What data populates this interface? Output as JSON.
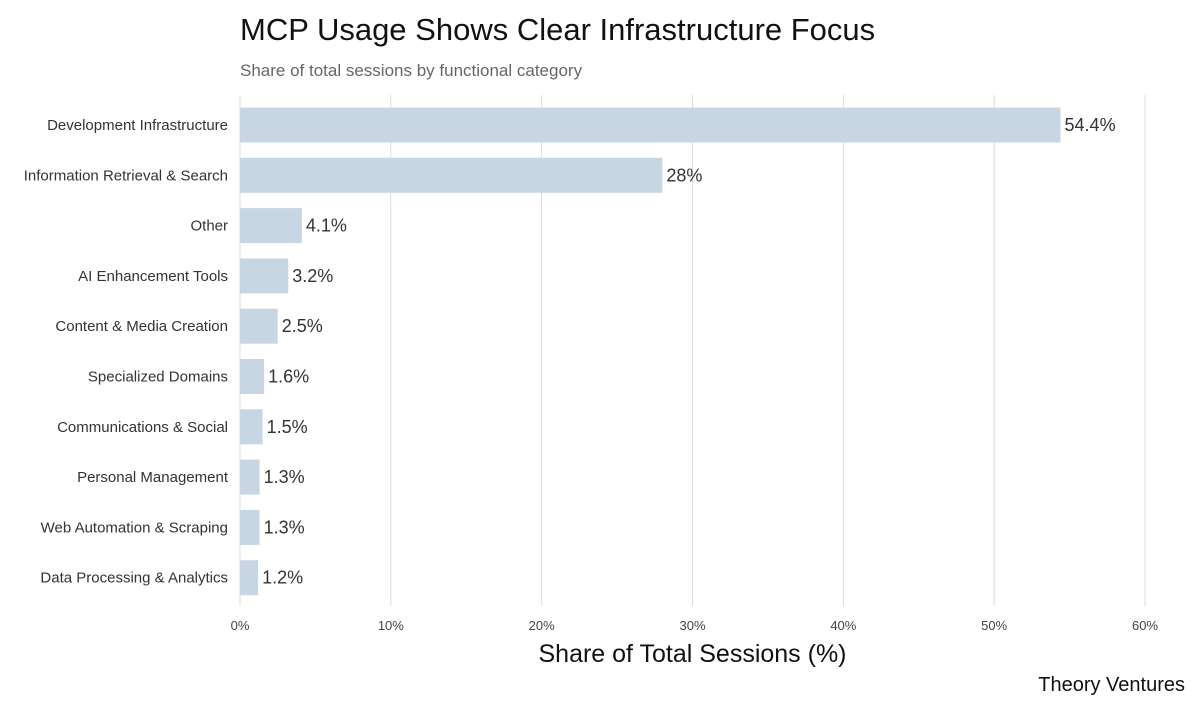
{
  "chart_data": {
    "type": "bar",
    "orientation": "horizontal",
    "title": "MCP Usage Shows Clear Infrastructure Focus",
    "subtitle": "Share of total sessions by functional category",
    "xlabel": "Share of Total Sessions (%)",
    "ylabel": "",
    "xlim": [
      0,
      60
    ],
    "xticks": [
      0,
      10,
      20,
      30,
      40,
      50,
      60
    ],
    "xtick_labels": [
      "0%",
      "10%",
      "20%",
      "30%",
      "40%",
      "50%",
      "60%"
    ],
    "grid": "vertical",
    "bar_color": "#c8d6e3",
    "categories": [
      "Development Infrastructure",
      "Information Retrieval & Search",
      "Other",
      "AI Enhancement Tools",
      "Content & Media Creation",
      "Specialized Domains",
      "Communications & Social",
      "Personal Management",
      "Web Automation & Scraping",
      "Data Processing & Analytics"
    ],
    "values": [
      54.4,
      28,
      4.1,
      3.2,
      2.5,
      1.6,
      1.5,
      1.3,
      1.3,
      1.2
    ],
    "value_labels": [
      "54.4%",
      "28%",
      "4.1%",
      "3.2%",
      "2.5%",
      "1.6%",
      "1.5%",
      "1.3%",
      "1.3%",
      "1.2%"
    ]
  },
  "source": "Theory Ventures"
}
